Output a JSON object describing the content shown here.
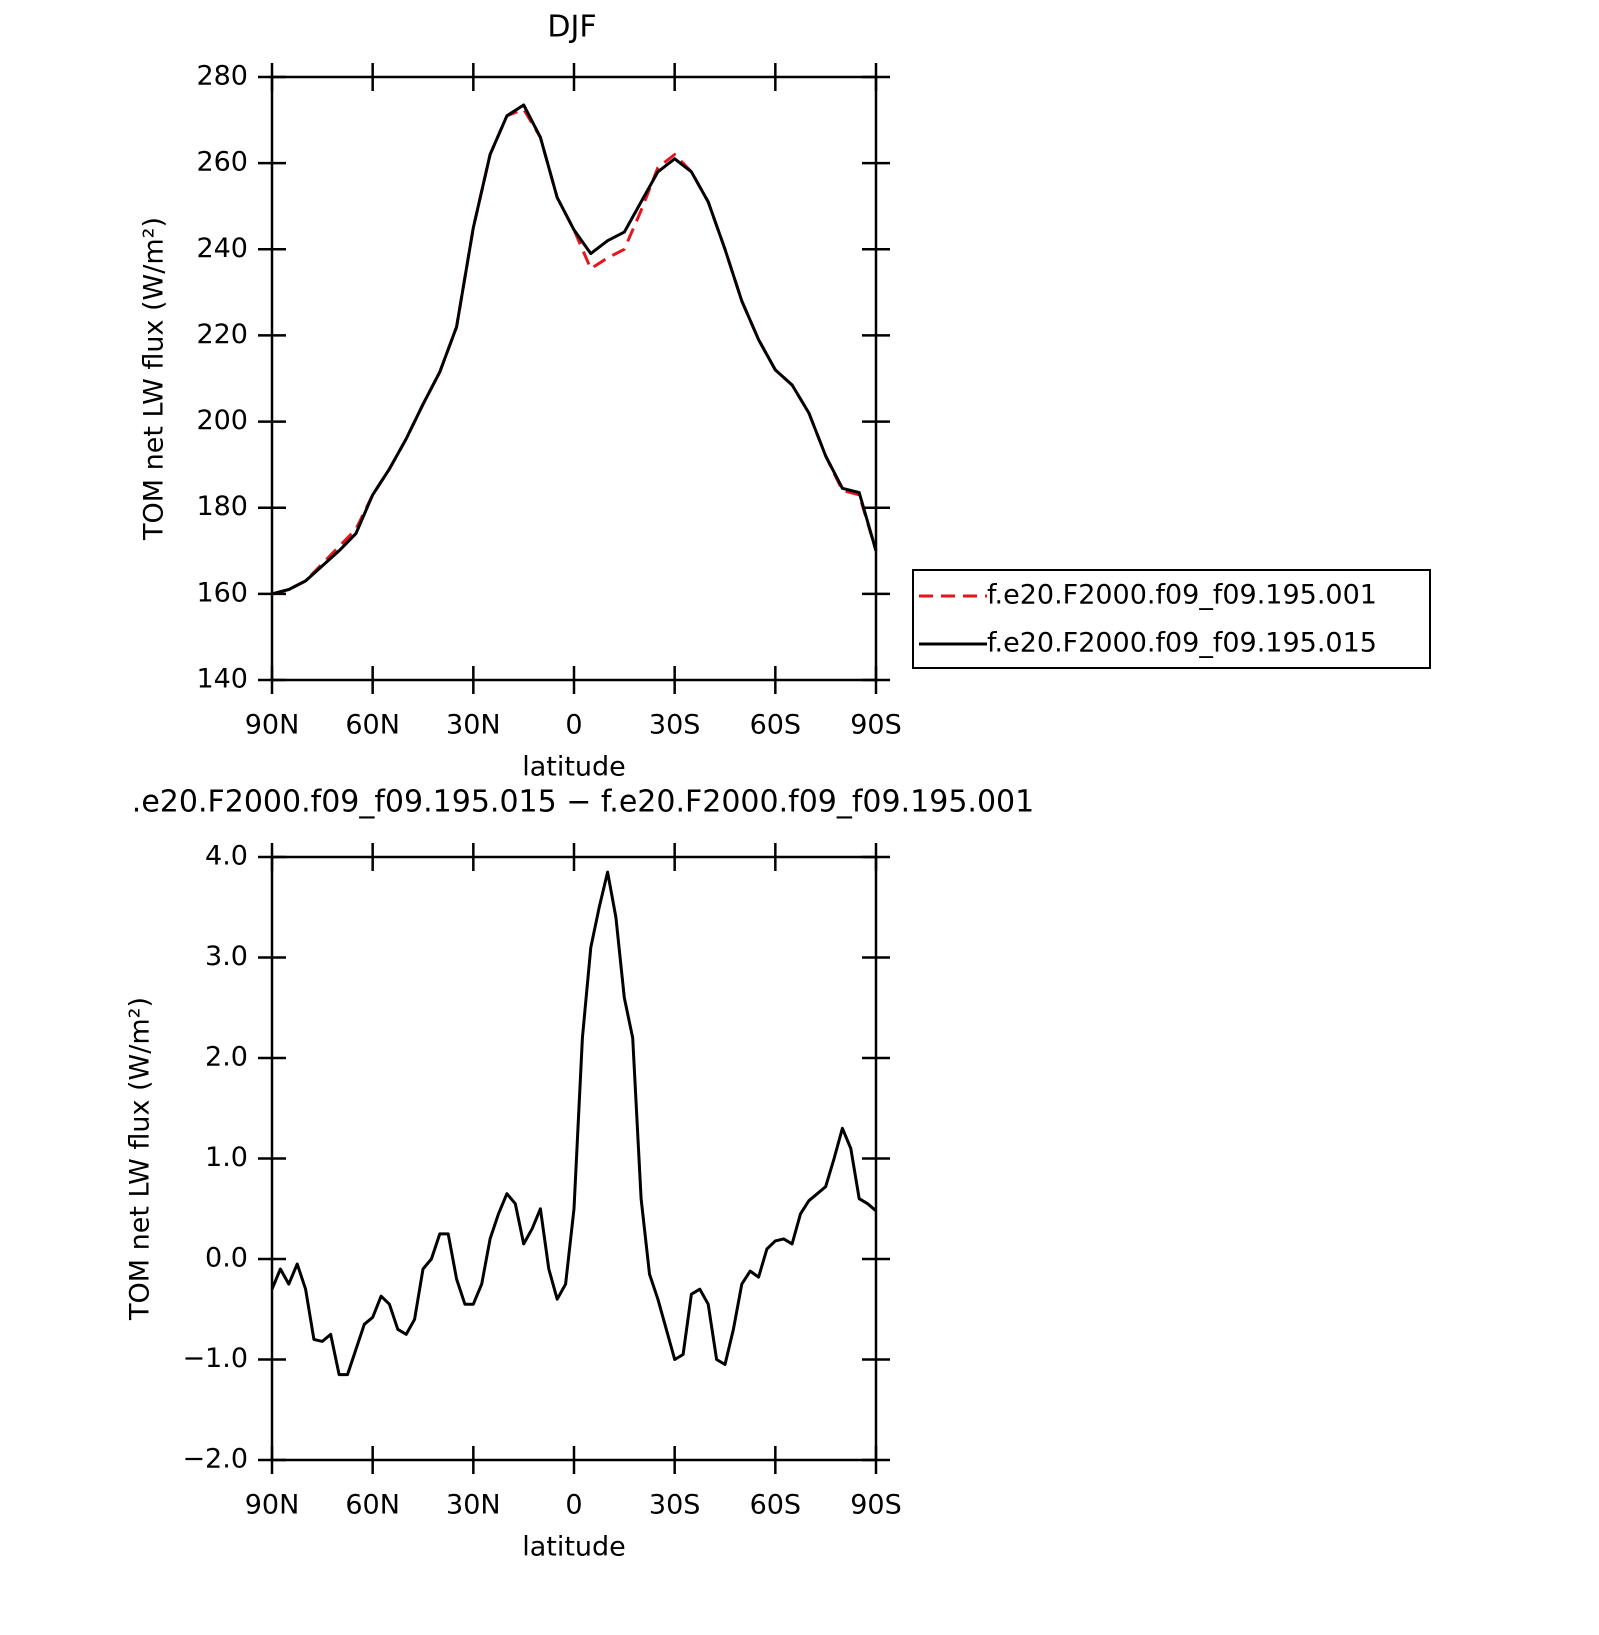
{
  "chart_data": [
    {
      "type": "line",
      "title": "DJF",
      "xlabel": "latitude",
      "ylabel": "TOM net LW flux (W/m²)",
      "x": [
        90,
        85,
        80,
        75,
        70,
        65,
        60,
        55,
        50,
        45,
        40,
        35,
        30,
        25,
        20,
        15,
        10,
        5,
        0,
        -5,
        -10,
        -15,
        -20,
        -25,
        -30,
        -35,
        -40,
        -45,
        -50,
        -55,
        -60,
        -65,
        -70,
        -75,
        -80,
        -85,
        -90
      ],
      "series": [
        {
          "name": "f.e20.F2000.f09_f09.195.001",
          "color": "#e8141c",
          "dash": true,
          "values": [
            160,
            161,
            163,
            167,
            171,
            175,
            183,
            189,
            196,
            204,
            211.5,
            222,
            245,
            262,
            271,
            272.5,
            266,
            252,
            244.5,
            235.5,
            238,
            240,
            249,
            259,
            262,
            258,
            251,
            240,
            228,
            219,
            212,
            208.5,
            202,
            192,
            184,
            183,
            170
          ]
        },
        {
          "name": "f.e20.F2000.f09_f09.195.015",
          "color": "#000000",
          "dash": false,
          "values": [
            160,
            161,
            163,
            166.5,
            170,
            174,
            183,
            189,
            196,
            204,
            211.5,
            222,
            245,
            262,
            271,
            273.5,
            266,
            252,
            244.5,
            239,
            242,
            244,
            251,
            258,
            261,
            258,
            251,
            240,
            228,
            219,
            212,
            208.5,
            202,
            192,
            184.5,
            183.5,
            170
          ]
        }
      ],
      "xlim": [
        90,
        -90
      ],
      "xticks": [
        {
          "value": 90,
          "label": "90N"
        },
        {
          "value": 60,
          "label": "60N"
        },
        {
          "value": 30,
          "label": "30N"
        },
        0,
        {
          "value": -30,
          "label": "30S"
        },
        {
          "value": -60,
          "label": "60S"
        },
        {
          "value": -90,
          "label": "90S"
        }
      ],
      "ylim": [
        140,
        280
      ],
      "yticks": [
        140,
        160,
        180,
        200,
        220,
        240,
        260,
        280
      ],
      "legend": "right"
    },
    {
      "type": "line",
      "title": ".e20.F2000.f09_f09.195.015 − f.e20.F2000.f09_f09.195.001",
      "xlabel": "latitude",
      "ylabel": "TOM net LW flux (W/m²)",
      "x": [
        90,
        87.5,
        85,
        82.5,
        80,
        77.5,
        75,
        72.5,
        70,
        67.5,
        65,
        62.5,
        60,
        57.5,
        55,
        52.5,
        50,
        47.5,
        45,
        42.5,
        40,
        37.5,
        35,
        32.5,
        30,
        27.5,
        25,
        22.5,
        20,
        17.5,
        15,
        12.5,
        10,
        7.5,
        5,
        2.5,
        0,
        -2.5,
        -5,
        -7.5,
        -10,
        -12.5,
        -15,
        -17.5,
        -20,
        -22.5,
        -25,
        -27.5,
        -30,
        -32.5,
        -35,
        -37.5,
        -40,
        -42.5,
        -45,
        -47.5,
        -50,
        -52.5,
        -55,
        -57.5,
        -60,
        -62.5,
        -65,
        -67.5,
        -70,
        -72.5,
        -75,
        -77.5,
        -80,
        -82.5,
        -85,
        -87.5,
        -90
      ],
      "series": [
        {
          "color": "#000000",
          "dash": false,
          "values": [
            -0.3,
            -0.1,
            -0.25,
            -0.05,
            -0.3,
            -0.8,
            -0.82,
            -0.75,
            -1.15,
            -1.15,
            -0.9,
            -0.65,
            -0.58,
            -0.37,
            -0.45,
            -0.7,
            -0.75,
            -0.6,
            -0.1,
            0.0,
            0.25,
            0.25,
            -0.2,
            -0.45,
            -0.45,
            -0.25,
            0.2,
            0.45,
            0.65,
            0.55,
            0.15,
            0.3,
            0.5,
            -0.1,
            -0.4,
            -0.25,
            0.5,
            2.2,
            3.1,
            3.5,
            3.85,
            3.4,
            2.6,
            2.2,
            0.6,
            -0.15,
            -0.4,
            -0.7,
            -1.0,
            -0.95,
            -0.35,
            -0.3,
            -0.45,
            -1.0,
            -1.05,
            -0.7,
            -0.25,
            -0.12,
            -0.18,
            0.1,
            0.18,
            0.2,
            0.15,
            0.45,
            0.58,
            0.65,
            0.72,
            1.0,
            1.3,
            1.1,
            0.6,
            0.55,
            0.48
          ]
        }
      ],
      "xlim": [
        90,
        -90
      ],
      "xticks": [
        {
          "value": 90,
          "label": "90N"
        },
        {
          "value": 60,
          "label": "60N"
        },
        {
          "value": 30,
          "label": "30N"
        },
        0,
        {
          "value": -30,
          "label": "30S"
        },
        {
          "value": -60,
          "label": "60S"
        },
        {
          "value": -90,
          "label": "90S"
        }
      ],
      "ylim": [
        -2,
        4
      ],
      "yticks": [
        {
          "value": -2,
          "label": "−2.0"
        },
        {
          "value": -1,
          "label": "−1.0"
        },
        {
          "value": 0,
          "label": "0.0"
        },
        {
          "value": 1,
          "label": "1.0"
        },
        {
          "value": 2,
          "label": "2.0"
        },
        {
          "value": 3,
          "label": "3.0"
        },
        {
          "value": 4,
          "label": "4.0"
        }
      ]
    }
  ]
}
